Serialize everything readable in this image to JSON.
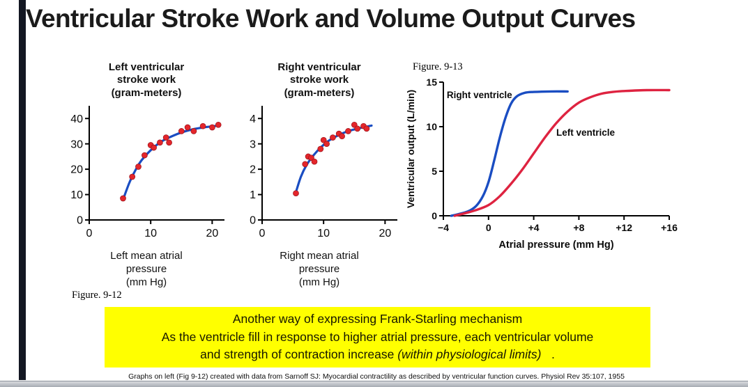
{
  "title": "Ventricular Stroke Work and Volume Output Curves",
  "figure_labels": {
    "fig913": "Figure. 9-13",
    "fig912": "Figure. 9-12"
  },
  "note_box": {
    "bg_color": "#ffff00",
    "line1": "Another way of expressing Frank-Starling mechanism",
    "line2": "As the ventricle fill in response to higher atrial pressure, each ventricular volume",
    "line3_pre": "and strength of contraction increase ",
    "line3_italic": "(within physiological limits)",
    "line3_post": "   ."
  },
  "footer": {
    "citation": "Graphs on left (Fig 9-12) created with data from Sarnoff SJ: Myocardial contractility as described by ventricular function curves. Physiol Rev 35:107, 1955"
  },
  "colors": {
    "curve_blue": "#1a4dc2",
    "point_red": "#e4262b",
    "curve_red": "#de2340",
    "stripe": "#131722"
  },
  "chart_data": [
    {
      "id": "left-ventricular-stroke-work",
      "type": "scatter",
      "title": "Left ventricular\nstroke work\n(gram-meters)",
      "xlabel": "Left mean atrial\npressure\n(mm Hg)",
      "ylabel": "",
      "xlim": [
        0,
        22
      ],
      "ylim": [
        0,
        45
      ],
      "xticks": [
        0,
        10,
        20
      ],
      "yticks": [
        0,
        10,
        20,
        30,
        40
      ],
      "point_color": "#e4262b",
      "curve_color": "#1a4dc2",
      "points": [
        [
          5.5,
          8.5
        ],
        [
          7,
          17
        ],
        [
          8,
          21
        ],
        [
          9,
          25.5
        ],
        [
          10,
          29.5
        ],
        [
          10.5,
          28.5
        ],
        [
          11.5,
          30.5
        ],
        [
          12.5,
          32.5
        ],
        [
          13,
          30.5
        ],
        [
          15,
          35
        ],
        [
          16,
          36.5
        ],
        [
          17,
          35
        ],
        [
          18.5,
          37
        ],
        [
          20,
          36.5
        ],
        [
          21,
          37.5
        ]
      ],
      "curve": [
        [
          5.5,
          8
        ],
        [
          6.5,
          14.5
        ],
        [
          7.5,
          19.5
        ],
        [
          8.5,
          23.5
        ],
        [
          10,
          27.5
        ],
        [
          11.5,
          30.5
        ],
        [
          13,
          32.5
        ],
        [
          15,
          34.5
        ],
        [
          17,
          35.8
        ],
        [
          19,
          36.6
        ],
        [
          21,
          37.2
        ]
      ]
    },
    {
      "id": "right-ventricular-stroke-work",
      "type": "scatter",
      "title": "Right ventricular\nstroke work\n(gram-meters)",
      "xlabel": "Right mean atrial\npressure\n(mm Hg)",
      "ylabel": "",
      "xlim": [
        0,
        22
      ],
      "ylim": [
        0,
        4.5
      ],
      "xticks": [
        0,
        10,
        20
      ],
      "yticks": [
        0,
        1,
        2,
        3,
        4
      ],
      "point_color": "#e4262b",
      "curve_color": "#1a4dc2",
      "points": [
        [
          5.5,
          1.05
        ],
        [
          7,
          2.2
        ],
        [
          7.5,
          2.5
        ],
        [
          8,
          2.45
        ],
        [
          8.5,
          2.3
        ],
        [
          9.5,
          2.8
        ],
        [
          10,
          3.15
        ],
        [
          10.5,
          3.0
        ],
        [
          11.5,
          3.25
        ],
        [
          12.5,
          3.4
        ],
        [
          13,
          3.3
        ],
        [
          14,
          3.5
        ],
        [
          15,
          3.75
        ],
        [
          15.5,
          3.6
        ],
        [
          16.5,
          3.7
        ],
        [
          17,
          3.6
        ]
      ],
      "curve": [
        [
          5.5,
          1.1
        ],
        [
          6.3,
          1.7
        ],
        [
          7.2,
          2.15
        ],
        [
          8.2,
          2.5
        ],
        [
          9.5,
          2.85
        ],
        [
          11,
          3.15
        ],
        [
          12.5,
          3.35
        ],
        [
          14,
          3.5
        ],
        [
          15.5,
          3.6
        ],
        [
          17,
          3.68
        ],
        [
          17.8,
          3.72
        ]
      ]
    },
    {
      "id": "ventricular-output-curves",
      "type": "line",
      "title": "",
      "xlabel": "Atrial pressure (mm Hg)",
      "ylabel": "Ventricular output (L/min)",
      "xlim": [
        -4,
        16
      ],
      "ylim": [
        0,
        15
      ],
      "xticks": [
        -4,
        0,
        4,
        8,
        12,
        16
      ],
      "xtick_labels": [
        "−4",
        "0",
        "+4",
        "+8",
        "+12",
        "+16"
      ],
      "yticks": [
        0,
        5,
        10,
        15
      ],
      "series": [
        {
          "name": "Right ventricle",
          "color": "#1a4dc2",
          "points": [
            [
              -3.3,
              0
            ],
            [
              -2.6,
              0.2
            ],
            [
              -1.8,
              0.5
            ],
            [
              -1.1,
              1.1
            ],
            [
              -0.5,
              2.2
            ],
            [
              0,
              3.8
            ],
            [
              0.5,
              6.2
            ],
            [
              1,
              8.8
            ],
            [
              1.5,
              11
            ],
            [
              2,
              12.6
            ],
            [
              2.5,
              13.4
            ],
            [
              3.2,
              13.8
            ],
            [
              4,
              13.9
            ],
            [
              5.5,
              13.95
            ],
            [
              7,
              13.95
            ]
          ]
        },
        {
          "name": "Left ventricle",
          "color": "#de2340",
          "points": [
            [
              -3,
              0
            ],
            [
              -2.2,
              0.25
            ],
            [
              -1.2,
              0.6
            ],
            [
              0,
              1.2
            ],
            [
              1,
              2.2
            ],
            [
              2,
              3.6
            ],
            [
              3,
              5.2
            ],
            [
              4,
              7
            ],
            [
              5,
              8.8
            ],
            [
              6,
              10.4
            ],
            [
              7,
              11.7
            ],
            [
              8,
              12.7
            ],
            [
              9,
              13.3
            ],
            [
              10,
              13.7
            ],
            [
              11,
              13.9
            ],
            [
              12,
              14
            ],
            [
              14,
              14.1
            ],
            [
              16,
              14.1
            ]
          ]
        }
      ],
      "annotations": [
        {
          "text": "Right ventricle",
          "x": -3.7,
          "y": 13.2,
          "anchor": "start"
        },
        {
          "text": "Left ventricle",
          "x": 6.0,
          "y": 9.0,
          "anchor": "start"
        }
      ]
    }
  ]
}
